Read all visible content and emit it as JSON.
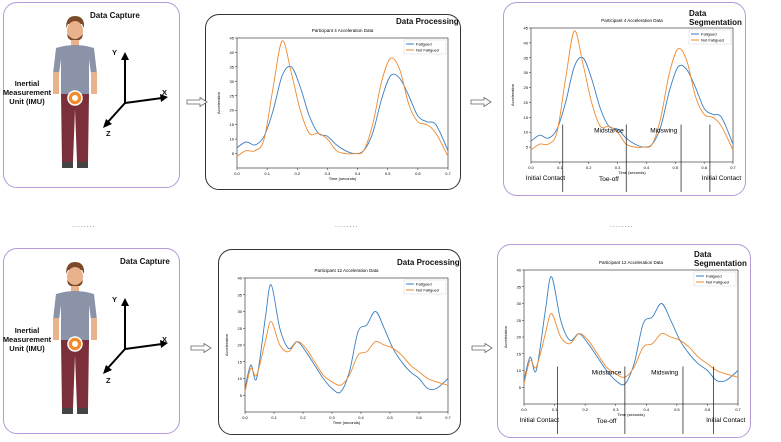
{
  "rows": [
    {
      "capture": {
        "title": "Data Capture",
        "imu_label_1": "Inertial",
        "imu_label_2": "Measurement",
        "imu_label_3": "Unit (IMU)",
        "axis_x": "X",
        "axis_y": "Y",
        "axis_z": "Z"
      },
      "processing": {
        "title": "Data Processing"
      },
      "segmentation": {
        "title": "Data Segmentation",
        "phases": {
          "initial_contact_1": "Initial Contact",
          "midstance": "Midstance",
          "toe_off": "Toe-off",
          "midswing": "Midswing",
          "initial_contact_2": "Initial Contact"
        }
      }
    },
    {
      "capture": {
        "title": "Data Capture",
        "imu_label_1": "Inertial",
        "imu_label_2": "Measurement",
        "imu_label_3": "Unit (IMU)",
        "axis_x": "X",
        "axis_y": "Y",
        "axis_z": "Z"
      },
      "processing": {
        "title": "Data Processing"
      },
      "segmentation": {
        "title": "Data Segmentation",
        "phases": {
          "initial_contact_1": "Initial Contact",
          "midstance": "Midstance",
          "toe_off": "Toe-off",
          "midswing": "Midswing",
          "initial_contact_2": "Initial Contact"
        }
      }
    }
  ],
  "separator_dots": "........",
  "colors": {
    "fatigued": "#3a7fc1",
    "not_fatigued": "#f08a2e"
  },
  "chart_data": [
    {
      "type": "line",
      "title": "Participant 4 Acceleration Data",
      "xlabel": "Time (seconds)",
      "ylabel": "Acceleration",
      "xlim": [
        0,
        0.7
      ],
      "ylim": [
        0,
        45
      ],
      "xticks": [
        0.0,
        0.1,
        0.2,
        0.3,
        0.4,
        0.5,
        0.6,
        0.7
      ],
      "yticks": [
        5,
        10,
        15,
        20,
        25,
        30,
        35,
        40,
        45
      ],
      "series": [
        {
          "name": "Fatigued",
          "x": [
            0.0,
            0.03,
            0.06,
            0.09,
            0.12,
            0.15,
            0.18,
            0.21,
            0.24,
            0.27,
            0.3,
            0.33,
            0.36,
            0.39,
            0.42,
            0.45,
            0.48,
            0.51,
            0.54,
            0.57,
            0.6,
            0.63,
            0.66,
            0.7
          ],
          "y": [
            7,
            9,
            8,
            11,
            20,
            32,
            35,
            28,
            18,
            12,
            11,
            8,
            6,
            5,
            6,
            12,
            24,
            32,
            31,
            25,
            18,
            16,
            15,
            6
          ]
        },
        {
          "name": "Not Fatigued",
          "x": [
            0.0,
            0.03,
            0.06,
            0.09,
            0.12,
            0.15,
            0.18,
            0.21,
            0.24,
            0.27,
            0.3,
            0.33,
            0.36,
            0.39,
            0.42,
            0.45,
            0.48,
            0.51,
            0.54,
            0.57,
            0.6,
            0.63,
            0.66,
            0.7
          ],
          "y": [
            4,
            6,
            6,
            10,
            28,
            44,
            33,
            20,
            12,
            12,
            10,
            6,
            5,
            5,
            6,
            15,
            30,
            38,
            34,
            22,
            16,
            15,
            12,
            4
          ]
        }
      ]
    },
    {
      "type": "line",
      "title": "Participant 12 Acceleration Data",
      "xlabel": "Time (seconds)",
      "ylabel": "Acceleration",
      "xlim": [
        0,
        0.7
      ],
      "ylim": [
        0,
        40
      ],
      "xticks": [
        0.0,
        0.1,
        0.2,
        0.3,
        0.4,
        0.5,
        0.6,
        0.7
      ],
      "yticks": [
        5,
        10,
        15,
        20,
        25,
        30,
        35,
        40
      ],
      "series": [
        {
          "name": "Fatigued",
          "x": [
            0.0,
            0.02,
            0.04,
            0.07,
            0.09,
            0.12,
            0.15,
            0.18,
            0.21,
            0.24,
            0.27,
            0.3,
            0.33,
            0.36,
            0.39,
            0.42,
            0.45,
            0.48,
            0.51,
            0.54,
            0.57,
            0.6,
            0.63,
            0.66,
            0.7
          ],
          "y": [
            7,
            14,
            10,
            28,
            38,
            25,
            19,
            21,
            18,
            14,
            10,
            7,
            6,
            12,
            24,
            26,
            30,
            25,
            19,
            15,
            12,
            10,
            7,
            7,
            10
          ]
        },
        {
          "name": "Not Fatigued",
          "x": [
            0.0,
            0.02,
            0.04,
            0.07,
            0.09,
            0.12,
            0.15,
            0.18,
            0.21,
            0.24,
            0.27,
            0.3,
            0.33,
            0.36,
            0.39,
            0.42,
            0.45,
            0.48,
            0.51,
            0.54,
            0.57,
            0.6,
            0.63,
            0.66,
            0.7
          ],
          "y": [
            6,
            13,
            11,
            21,
            27,
            20,
            18,
            21,
            19,
            15,
            11,
            9,
            8,
            11,
            17,
            18,
            21,
            20,
            19,
            17,
            14,
            12,
            10,
            9,
            8
          ]
        }
      ],
      "legend": [
        "Fatigued",
        "Not Fatigued"
      ]
    }
  ]
}
